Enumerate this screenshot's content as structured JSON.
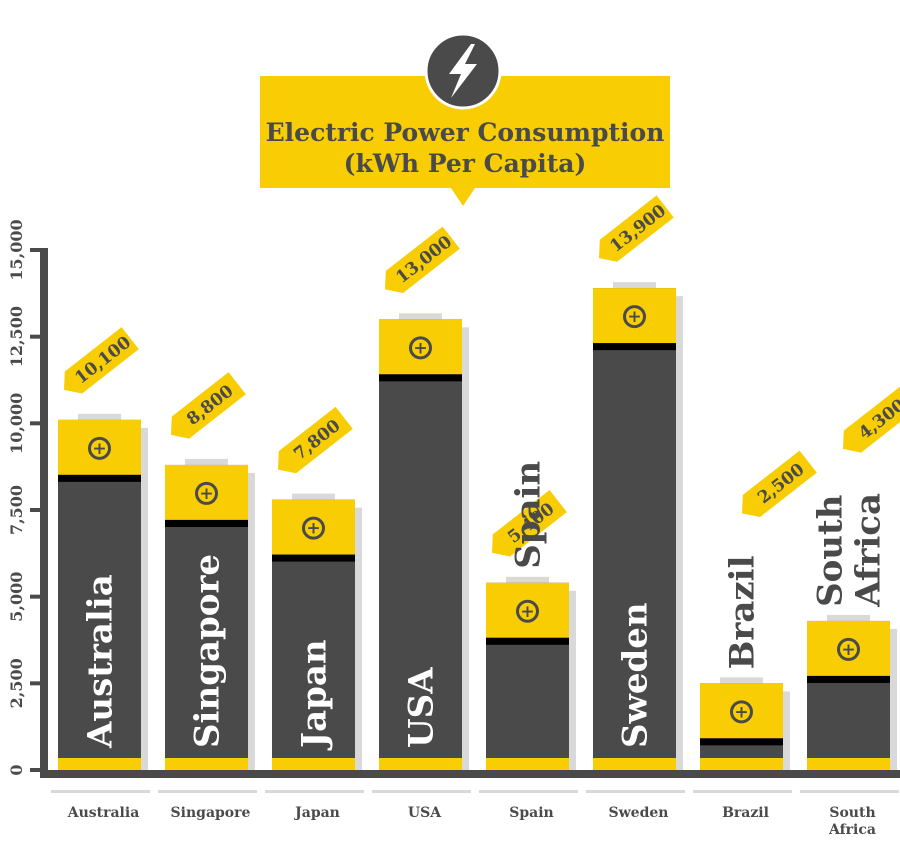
{
  "chart_data": {
    "type": "bar",
    "title": "Electric Power Consumption",
    "subtitle": "(kWh Per Capita)",
    "categories": [
      "Australia",
      "Singapore",
      "Japan",
      "USA",
      "Spain",
      "Sweden",
      "Brazil",
      "South Africa"
    ],
    "bar_labels": [
      [
        "Australia"
      ],
      [
        "Singapore"
      ],
      [
        "Japan"
      ],
      [
        "USA"
      ],
      [
        "Spain"
      ],
      [
        "Sweden"
      ],
      [
        "Brazil"
      ],
      [
        "South",
        "Africa"
      ]
    ],
    "x_tick_labels": [
      [
        "Australia"
      ],
      [
        "Singapore"
      ],
      [
        "Japan"
      ],
      [
        "USA"
      ],
      [
        "Spain"
      ],
      [
        "Sweden"
      ],
      [
        "Brazil"
      ],
      [
        "South",
        "Africa"
      ]
    ],
    "values": [
      10100,
      8800,
      7800,
      13000,
      5400,
      13900,
      2500,
      4300
    ],
    "value_labels": [
      "10,100",
      "8,800",
      "7,800",
      "13,000",
      "5,400",
      "13,900",
      "2,500",
      "4,300"
    ],
    "yticks": [
      "0",
      "2,500",
      "5,000",
      "7,500",
      "10,000",
      "12,500",
      "15,000"
    ],
    "ylim": [
      0,
      15000
    ],
    "xlabel": "",
    "ylabel": "",
    "grid": false,
    "battery_symbol": "+",
    "colors": {
      "battery": "#4a4a4a",
      "accent": "#f8cd03",
      "axis": "#4a4a4a",
      "badge_text": "#4a4a4a",
      "shadow": "#d9d9d9"
    },
    "icon": "lightning-bolt-icon"
  }
}
